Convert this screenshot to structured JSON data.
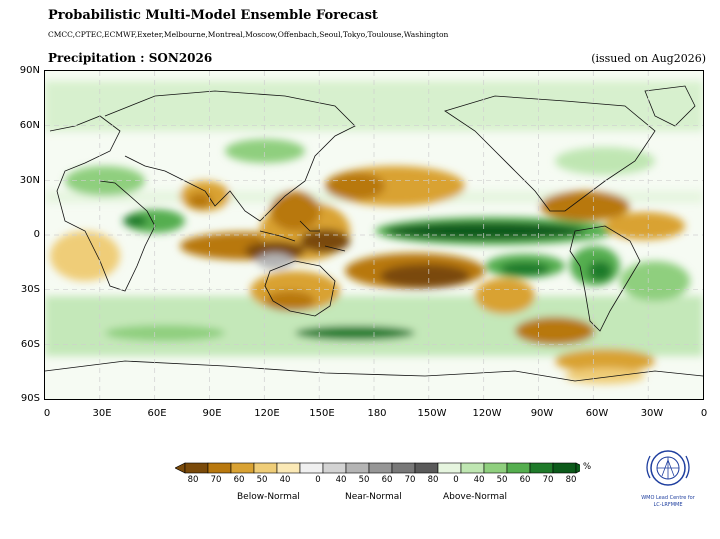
{
  "header": {
    "title": "Probabilistic Multi-Model Ensemble Forecast",
    "models": "CMCC,CPTEC,ECMWF,Exeter,Melbourne,Montreal,Moscow,Offenbach,Seoul,Tokyo,Toulouse,Washington",
    "variable": "Precipitation : SON2026",
    "issued": "(issued on Aug2026)"
  },
  "axes": {
    "lat_labels": [
      "90N",
      "60N",
      "30N",
      "0",
      "30S",
      "60S",
      "90S"
    ],
    "lon_labels": [
      "0",
      "30E",
      "60E",
      "90E",
      "120E",
      "150E",
      "180",
      "150W",
      "120W",
      "90W",
      "60W",
      "30W",
      "0"
    ]
  },
  "colorbar": {
    "unit": "%",
    "below_ticks": [
      "80",
      "70",
      "60",
      "50",
      "40"
    ],
    "near_ticks": [
      "0",
      "40",
      "50",
      "60",
      "70",
      "80"
    ],
    "above_ticks": [
      "0",
      "40",
      "50",
      "60",
      "70",
      "80"
    ],
    "categories": [
      "Below-Normal",
      "Near-Normal",
      "Above-Normal"
    ],
    "below_colors": [
      "#7a4a0a",
      "#b8780e",
      "#d9a233",
      "#efcd78",
      "#fbe9b6"
    ],
    "near_colors": [
      "#f0f0f0",
      "#d3d3d3",
      "#b4b4b4",
      "#969696",
      "#787878",
      "#5a5a5a"
    ],
    "above_colors": [
      "#e6f5df",
      "#bfe6b2",
      "#8fcf7e",
      "#55ae4f",
      "#1f7a2a",
      "#0c5a1a"
    ]
  },
  "logo": {
    "caption_line1": "WMO Lead Centre for",
    "caption_line2": "LC-LRFMME"
  }
}
